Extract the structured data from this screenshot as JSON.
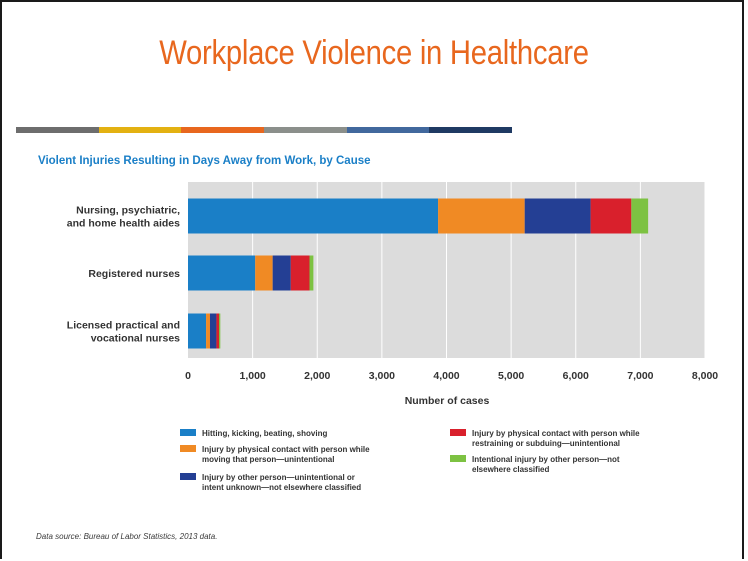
{
  "slide": {
    "title": "Workplace Violence in Healthcare",
    "title_color": "#e8671e",
    "stripe_colors": [
      "#6d6d6d",
      "#e3b112",
      "#e8671e",
      "#8b8f8b",
      "#41689d",
      "#1f3a63"
    ],
    "source": "Data source: Bureau of Labor Statistics, 2013 data."
  },
  "chart_data": {
    "type": "bar",
    "orientation": "horizontal",
    "stacked": true,
    "title": "Violent Injuries Resulting in Days Away from Work, by Cause",
    "xlabel": "Number of cases",
    "ylabel": "",
    "xlim": [
      0,
      8000
    ],
    "xticks": [
      0,
      1000,
      2000,
      3000,
      4000,
      5000,
      6000,
      7000,
      8000
    ],
    "xtick_labels": [
      "0",
      "1,000",
      "2,000",
      "3,000",
      "4,000",
      "5,000",
      "6,000",
      "7,000",
      "8,000"
    ],
    "grid": true,
    "plot_background": "#dcdcdc",
    "legend_position": "bottom",
    "categories": [
      [
        "Nursing, psychiatric,",
        "and home health aides"
      ],
      [
        "Registered nurses"
      ],
      [
        "Licensed practical and",
        "vocational nurses"
      ]
    ],
    "series": [
      {
        "name": "Hitting, kicking, beating, shoving",
        "legend_lines": [
          "Hitting, kicking, beating, shoving"
        ],
        "color": "#1a7fc7",
        "values": [
          3870,
          1040,
          280
        ]
      },
      {
        "name": "Injury by physical contact with person while moving that person—unintentional",
        "legend_lines": [
          "Injury by physical contact with person while",
          "moving that person—unintentional"
        ],
        "color": "#f08a24",
        "values": [
          1340,
          270,
          60
        ]
      },
      {
        "name": "Injury by other person—unintentional or intent unknown—not elsewhere classified",
        "legend_lines": [
          "Injury by other person—unintentional or",
          "intent unknown—not elsewhere classified"
        ],
        "color": "#243f94",
        "values": [
          1020,
          280,
          100
        ]
      },
      {
        "name": "Injury by physical contact with person while restraining or subduing—unintentional",
        "legend_lines": [
          "Injury by physical contact with person while",
          "restraining or subduing—unintentional"
        ],
        "color": "#d9202c",
        "values": [
          630,
          290,
          40
        ]
      },
      {
        "name": "Intentional injury by other person—not elsewhere classified",
        "legend_lines": [
          "Intentional injury by other person—not",
          "elsewhere classified"
        ],
        "color": "#7dc242",
        "values": [
          260,
          60,
          20
        ]
      }
    ]
  }
}
